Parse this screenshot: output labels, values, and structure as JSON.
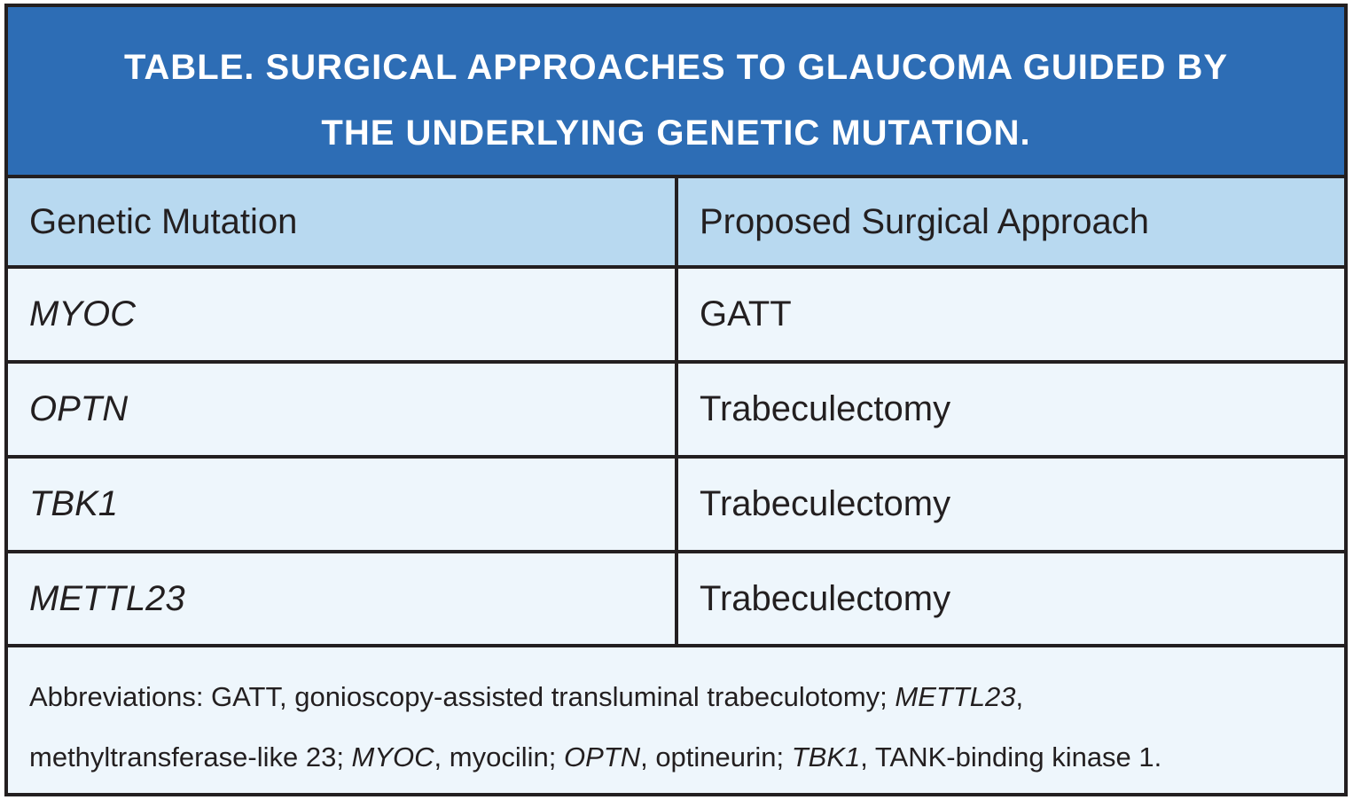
{
  "title": {
    "line1": "TABLE. SURGICAL APPROACHES TO GLAUCOMA GUIDED BY",
    "line2": "THE UNDERLYING GENETIC MUTATION."
  },
  "columns": [
    "Genetic Mutation",
    "Proposed Surgical Approach"
  ],
  "rows": [
    {
      "mutation": "MYOC",
      "approach": "GATT"
    },
    {
      "mutation": "OPTN",
      "approach": "Trabeculectomy"
    },
    {
      "mutation": "TBK1",
      "approach": "Trabeculectomy"
    },
    {
      "mutation": "METTL23",
      "approach": "Trabeculectomy"
    }
  ],
  "footnote": {
    "p1": "Abbreviations: GATT, gonioscopy-assisted transluminal trabeculotomy; ",
    "i1": "METTL23",
    "p2": ",",
    "p3": "methyltransferase-like 23; ",
    "i2": "MYOC",
    "p4": ", myocilin; ",
    "i3": "OPTN",
    "p5": ", optineurin; ",
    "i4": "TBK1",
    "p6": ", TANK-binding kinase 1."
  },
  "colors": {
    "title_bg": "#2d6db5",
    "header_bg": "#b8d9f0",
    "body_bg": "#eef6fc",
    "border": "#231f20"
  }
}
